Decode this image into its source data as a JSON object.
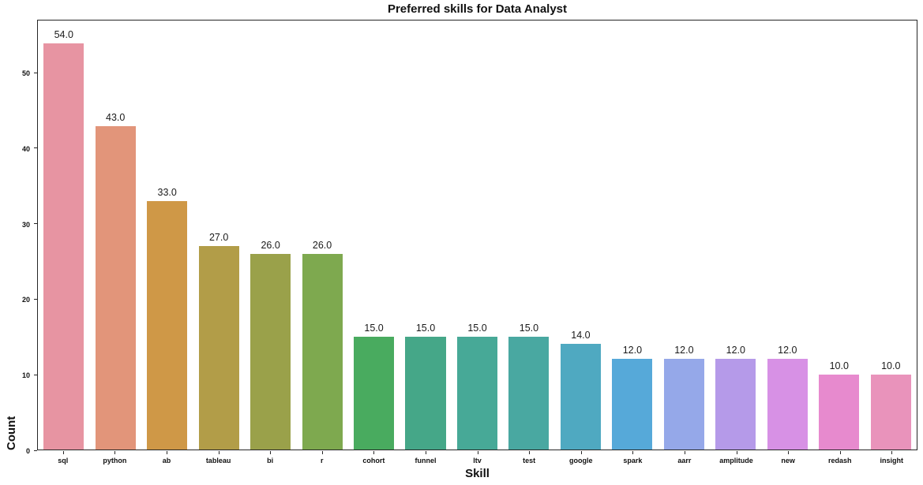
{
  "chart_data": {
    "type": "bar",
    "title": "Preferred skills for Data Analyst",
    "xlabel": "Skill",
    "ylabel": "Count",
    "categories": [
      "sql",
      "python",
      "ab",
      "tableau",
      "bi",
      "r",
      "cohort",
      "funnel",
      "ltv",
      "test",
      "google",
      "spark",
      "aarr",
      "amplitude",
      "new",
      "redash",
      "insight"
    ],
    "values": [
      54,
      43,
      33,
      27,
      26,
      26,
      15,
      15,
      15,
      15,
      14,
      12,
      12,
      12,
      12,
      10,
      10
    ],
    "value_labels": [
      "54.0",
      "43.0",
      "33.0",
      "27.0",
      "26.0",
      "26.0",
      "15.0",
      "15.0",
      "15.0",
      "15.0",
      "14.0",
      "12.0",
      "12.0",
      "12.0",
      "12.0",
      "10.0",
      "10.0"
    ],
    "bar_colors": [
      "#e794a2",
      "#e2957a",
      "#cf9847",
      "#b29d48",
      "#9aa14a",
      "#7ea94f",
      "#49ab5f",
      "#45a788",
      "#47a997",
      "#49a8a1",
      "#4fa9c1",
      "#56a9d9",
      "#95a8e9",
      "#b59ae9",
      "#d791e5",
      "#e78ace",
      "#e993bb"
    ],
    "yticks": [
      0,
      10,
      20,
      30,
      40,
      50
    ],
    "ytick_labels": [
      "0",
      "10",
      "20",
      "30",
      "40",
      "50"
    ],
    "ylim": [
      0,
      57
    ],
    "grid": false,
    "legend": "none",
    "axis_color": "#262626",
    "background_color": "#ffffff"
  }
}
